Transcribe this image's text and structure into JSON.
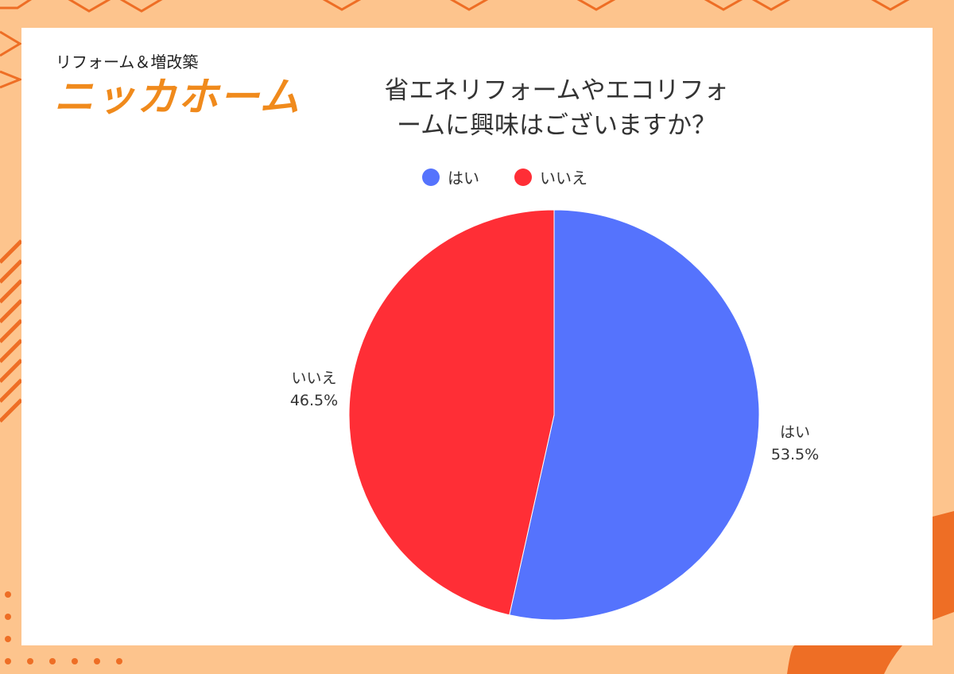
{
  "brand": {
    "subtitle": "リフォーム＆増改築",
    "name": "ニッカホーム"
  },
  "chart_data": {
    "type": "pie",
    "title": "省エネリフォームやエコリフォームに興味はございますか？",
    "title_lines": [
      "省エネリフォームやエコリフォ",
      "ームに興味はございますか？"
    ],
    "legend_position": "top",
    "slices": [
      {
        "name": "はい",
        "value": 53.5,
        "label": "53.5%",
        "color": "#5573fd"
      },
      {
        "name": "いいえ",
        "value": 46.5,
        "label": "46.5%",
        "color": "#ff2e36"
      }
    ]
  }
}
